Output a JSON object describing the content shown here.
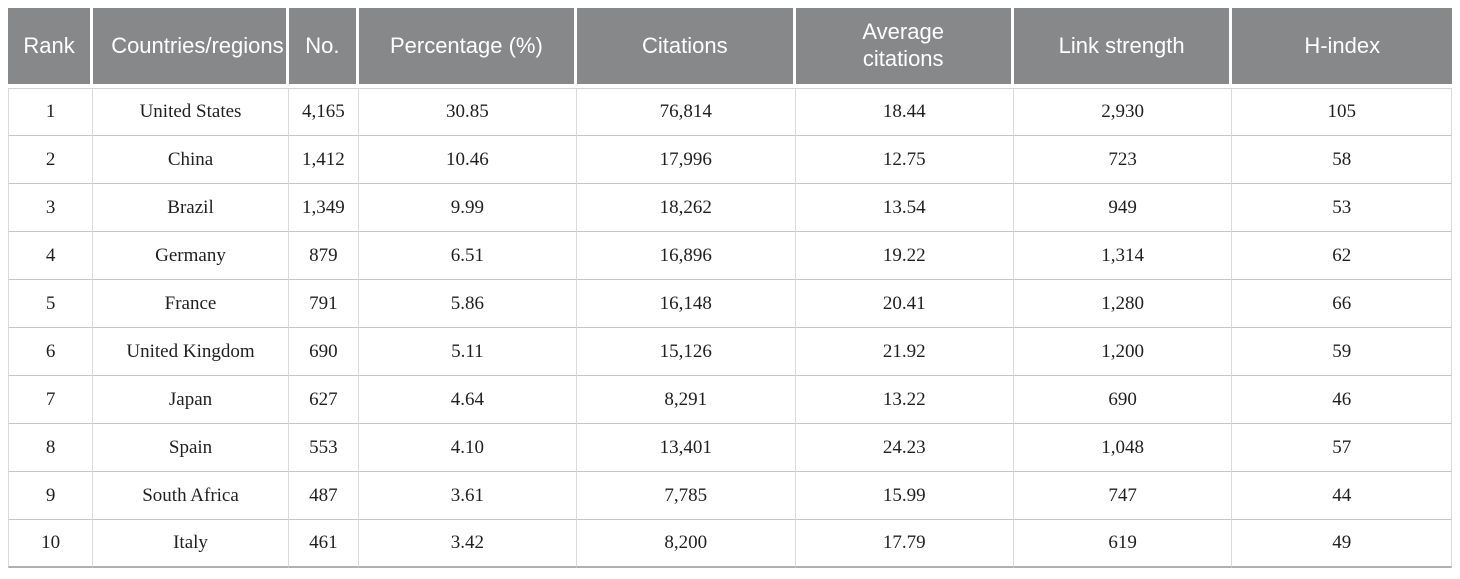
{
  "chart_data": {
    "type": "table",
    "columns": [
      {
        "key": "rank",
        "label": "Rank"
      },
      {
        "key": "country",
        "label": "Countries/regions"
      },
      {
        "key": "no",
        "label": "No."
      },
      {
        "key": "percentage",
        "label": "Percentage (%)"
      },
      {
        "key": "citations",
        "label": "Citations"
      },
      {
        "key": "avg_citations",
        "label": "Average citations"
      },
      {
        "key": "link_strength",
        "label": "Link strength"
      },
      {
        "key": "h_index",
        "label": "H-index"
      }
    ],
    "rows": [
      [
        "1",
        "United States",
        "4,165",
        "30.85",
        "76,814",
        "18.44",
        "2,930",
        "105"
      ],
      [
        "2",
        "China",
        "1,412",
        "10.46",
        "17,996",
        "12.75",
        "723",
        "58"
      ],
      [
        "3",
        "Brazil",
        "1,349",
        "9.99",
        "18,262",
        "13.54",
        "949",
        "53"
      ],
      [
        "4",
        "Germany",
        "879",
        "6.51",
        "16,896",
        "19.22",
        "1,314",
        "62"
      ],
      [
        "5",
        "France",
        "791",
        "5.86",
        "16,148",
        "20.41",
        "1,280",
        "66"
      ],
      [
        "6",
        "United Kingdom",
        "690",
        "5.11",
        "15,126",
        "21.92",
        "1,200",
        "59"
      ],
      [
        "7",
        "Japan",
        "627",
        "4.64",
        "8,291",
        "13.22",
        "690",
        "46"
      ],
      [
        "8",
        "Spain",
        "553",
        "4.10",
        "13,401",
        "24.23",
        "1,048",
        "57"
      ],
      [
        "9",
        "South Africa",
        "487",
        "3.61",
        "7,785",
        "15.99",
        "747",
        "44"
      ],
      [
        "10",
        "Italy",
        "461",
        "3.42",
        "8,200",
        "17.79",
        "619",
        "49"
      ]
    ]
  },
  "colors": {
    "header_bg": "#868889",
    "header_text": "#ffffff",
    "body_text": "#1f1f1f",
    "row_line": "#c6c6c6",
    "column_line": "#dadada",
    "bottom_line": "#b0b0b0"
  }
}
